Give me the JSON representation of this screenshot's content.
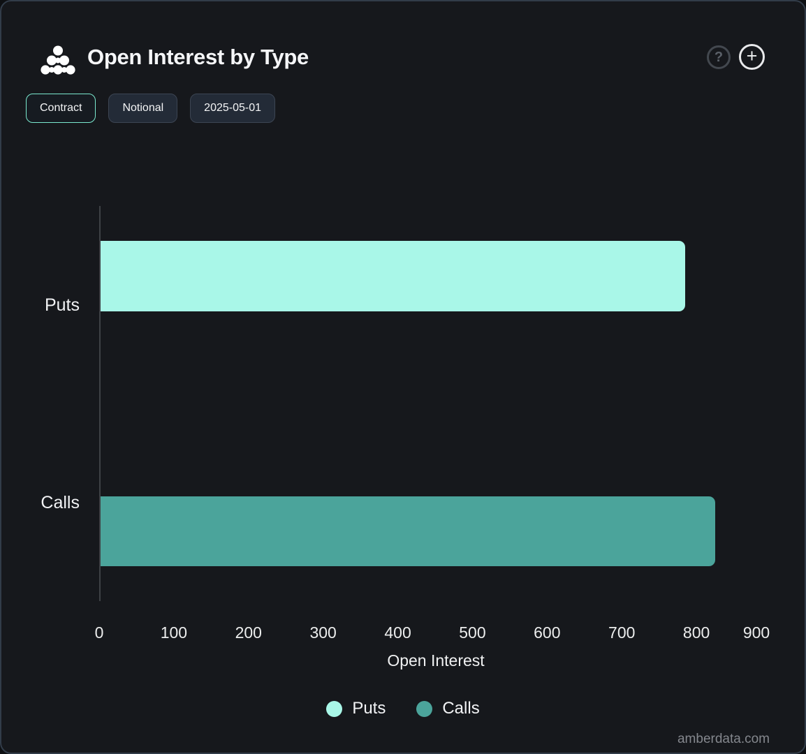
{
  "header": {
    "title": "Open Interest by Type",
    "help_label": "?",
    "add_label": "+"
  },
  "toolbar": {
    "buttons": [
      {
        "label": "Contract",
        "active": true
      },
      {
        "label": "Notional",
        "active": false
      },
      {
        "label": "2025-05-01",
        "active": false
      }
    ]
  },
  "chart_data": {
    "type": "bar",
    "orientation": "horizontal",
    "title": "Open Interest by Type",
    "categories": [
      "Puts",
      "Calls"
    ],
    "values": [
      783,
      823
    ],
    "xlabel": "Open Interest",
    "xlim": [
      0,
      900
    ],
    "xticks": [
      0,
      100,
      200,
      300,
      400,
      500,
      600,
      700,
      800,
      900
    ],
    "grid": false,
    "bar_colors": [
      "#a9f7e8",
      "#4ba49b"
    ],
    "legend": {
      "position": "bottom",
      "entries": [
        {
          "label": "Puts",
          "color": "#a9f7e8"
        },
        {
          "label": "Calls",
          "color": "#4ba49b"
        }
      ]
    }
  },
  "colors": {
    "background": "#16181c",
    "card_border": "#323c49",
    "accent": "#7beacf",
    "axis_line": "#3e4145",
    "text": "#f2f3f5",
    "muted_text": "#84878d"
  },
  "watermark": "amberdata.com"
}
